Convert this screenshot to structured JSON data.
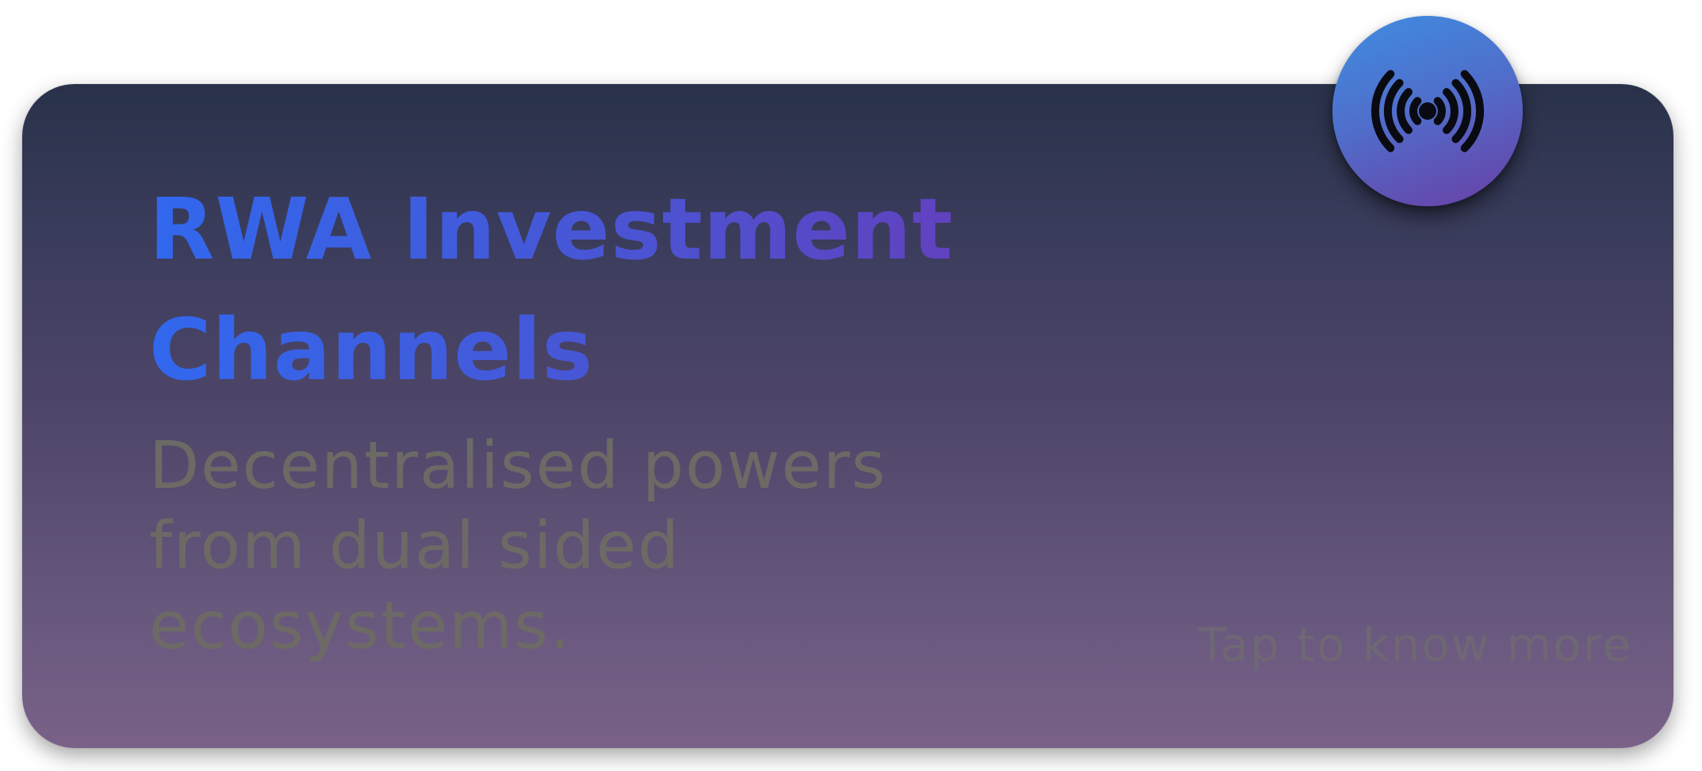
{
  "card": {
    "title_line1": "RWA Investment",
    "title_line2": "Channels",
    "description_line1": "Decentralised powers",
    "description_line2": "from dual sided",
    "description_line3": "ecosystems.",
    "cta_label": "Tap to know more"
  },
  "badge": {
    "icon": "broadcast-icon"
  },
  "colors": {
    "card_gradient_top": "#29324a",
    "card_gradient_bottom": "#7a6188",
    "title_gradient_start": "#3168ee",
    "title_gradient_end": "#6b39b6",
    "description_text": "#6d6a66",
    "cta_text": "#6e6774",
    "badge_gradient_start": "#3e8de0",
    "badge_gradient_end": "#6a3ea5"
  }
}
